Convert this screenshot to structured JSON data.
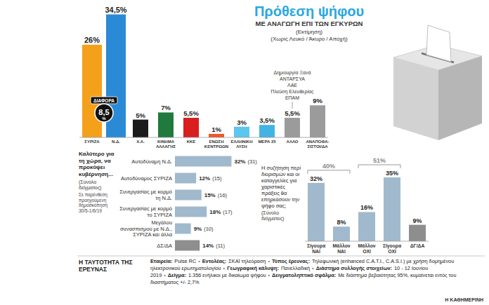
{
  "chart_data": [
    {
      "type": "bar",
      "title": "Πρόθεση ψήφου",
      "subtitle": "ΜΕ ΑΝΑΓΩΓΗ ΕΠΙ ΤΩΝ ΕΓΚΥΡΩΝ",
      "notes": [
        "(Εκτίμηση)",
        "(Χωρίς Λευκό / Άκυρο / Αποχή)"
      ],
      "categories": [
        "ΣΥΡΙΖΑ",
        "Ν.Δ.",
        "Χ.Α.",
        "ΚΙΝΗΜΑ ΑΛΛΑΓΗΣ",
        "ΚΚΕ",
        "ΕΝΩΣΗ ΚΕΝΤΡΩΩΝ",
        "ΕΛΛΗΝΙΚΗ ΛΥΣΗ",
        "ΜΕΡΑ 25",
        "ΑΛΛΟ",
        "ΑΝΑΠΟΦΑ-ΣΙΣΤΟΙ/ΔΑ"
      ],
      "values": [
        26,
        34.5,
        5,
        7,
        5.5,
        1,
        3,
        3.5,
        5.5,
        9
      ],
      "value_labels": [
        "26%",
        "34,5%",
        "5%",
        "7%",
        "5,5%",
        "1%",
        "3%",
        "3,5%",
        "5,5%",
        "9%"
      ],
      "colors": [
        "#f5a01a",
        "#2b8ad6",
        "#1b1b1b",
        "#1f7a3c",
        "#d81e1e",
        "#f0562a",
        "#5cc6ee",
        "#44b3e4",
        "#9b9b9b",
        "#9b9b9b"
      ],
      "ylim": [
        0,
        35
      ],
      "tick_labels": false,
      "data_labels": true,
      "difference": {
        "title": "ΔΙΑΦΟΡΑ",
        "value": 8.5,
        "value_label": "8,5",
        "unit": "%"
      },
      "other_parties": {
        "category": "ΑΛΛΟ",
        "names": [
          "Δημιουργία Ξανά",
          "ΑΝΤΑΡΣΥΑ",
          "ΛΑΕ",
          "Πλεύση Ελευθερίας",
          "ΕΠΑΜ"
        ]
      }
    },
    {
      "type": "bar",
      "orientation": "horizontal",
      "title": "Καλύτερο για τη χώρα, να προκύψει κυβέρνηση...",
      "subtitle": "(Σύνολο δείγματος)",
      "notes": [
        "Σε παρένθεση προηγούμενη δημοσκόπηση 30/5-1/6/19"
      ],
      "categories": [
        "Αυτοδύναμη Ν.Δ.",
        "Αυτοδύναμος ΣΥΡΙΖΑ",
        "Συνεργασίας με κορμό τη Ν.Δ.",
        "Συνεργασίας με κορμό το ΣΥΡΙΖΑ",
        "Μεγάλου συνασπισμού με Ν.Δ., ΣΥΡΙΖΑ και άλλα",
        "ΔΣ/ΔΑ"
      ],
      "values": [
        32,
        12,
        15,
        18,
        9,
        14
      ],
      "value_labels": [
        "32%",
        "12%",
        "15%",
        "18%",
        "9%",
        "14%"
      ],
      "previous_labels": [
        "(31)",
        "(15)",
        "(16)",
        "(17)",
        "(10)",
        "(11)"
      ],
      "colors": [
        "#a1b9cc",
        "#a1b9cc",
        "#a1b9cc",
        "#a1b9cc",
        "#a1b9cc",
        "#8e8e8e"
      ],
      "xlim": [
        0,
        35
      ],
      "tick_labels": false,
      "data_labels": true
    },
    {
      "type": "bar",
      "title": "Η συζήτηση περί διορισμών και οι καταγγελίες για χαριστικές πράξεις θα επηρεάσουν την ψήφο σας;",
      "subtitle": "(Σύνολο δείγματος)",
      "categories": [
        "Σίγουρα ΝΑΙ",
        "Μάλλον ΝΑΙ",
        "Μάλλον ΟΧΙ",
        "Σίγουρα ΟΧΙ",
        "ΔΓ/ΔΑ"
      ],
      "values": [
        32,
        8,
        16,
        35,
        9
      ],
      "value_labels": [
        "32%",
        "8%",
        "16%",
        "35%",
        "9%"
      ],
      "colors": [
        "#a1b9cc",
        "#a1b9cc",
        "#a1b9cc",
        "#a1b9cc",
        "#8e8e8e"
      ],
      "ylim": [
        0,
        35
      ],
      "tick_labels": false,
      "data_labels": true,
      "groups": [
        {
          "label": "40%",
          "value": 40,
          "members": [
            "Σίγουρα ΝΑΙ",
            "Μάλλον ΝΑΙ"
          ]
        },
        {
          "label": "51%",
          "value": 51,
          "members": [
            "Μάλλον ΟΧΙ",
            "Σίγουρα ΟΧΙ"
          ]
        }
      ]
    }
  ],
  "footer": {
    "title": "Η ΤΑΥΤΟΤΗΤΑ ΤΗΣ ΕΡΕΥΝΑΣ",
    "separator": "•",
    "items": [
      {
        "key": "Εταιρεία:",
        "text": "Pulse RC"
      },
      {
        "key": "Εντολέας:",
        "text": "ΣΚΑΪ τηλεόραση"
      },
      {
        "key": "Τύπος έρευνας:",
        "text": "Τηλεφωνική (enhanced C.A.T.I., C.A.S.I.) με χρήση δομημένου ηλεκτρονικού ερωτηματολογίου"
      },
      {
        "key": "Γεωγραφική κάλυψη:",
        "text": "Πανελλαδική"
      },
      {
        "key": "Διάστημα συλλογής στοιχείων:",
        "text": "10 - 12 Ιουνίου 2019"
      },
      {
        "key": "Δείγμα:",
        "text": "1.356 ενήλικοι με δικαίωμα ψήφου"
      },
      {
        "key": "Δειγματοληπτικό σφάλμα:",
        "text": "Με διάστημα βεβαιότητας 95%, κυμαίνεται εντός του διαστήματος +/- 2,7%"
      }
    ]
  },
  "source": "Η ΚΑΘΗΜΕΡΙΝΗ"
}
